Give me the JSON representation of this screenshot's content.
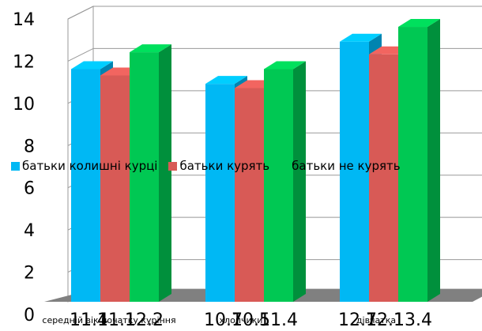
{
  "chart_data": {
    "type": "bar",
    "categories": [
      "середній вік початку куріння",
      "хлопчики",
      "дівчатка"
    ],
    "series": [
      {
        "name": "батьки колишні курці",
        "color": "#00b8f4",
        "values": [
          11.4,
          10.7,
          12.7
        ]
      },
      {
        "name": "батьки курять",
        "color": "#d85a56",
        "values": [
          11.1,
          10.5,
          12.1
        ]
      },
      {
        "name": "батьки не курять",
        "color": "#00c853",
        "values": [
          12.2,
          11.4,
          13.4
        ]
      }
    ],
    "data_labels": [
      [
        "11.4",
        "11.1",
        "12.2"
      ],
      [
        "10.7",
        "10.5",
        "11.4"
      ],
      [
        "12.7",
        "12.1",
        "13.4"
      ]
    ],
    "yticks": [
      0,
      2,
      4,
      6,
      8,
      10,
      12,
      14
    ],
    "ylim": [
      0,
      14
    ],
    "grid": true,
    "legend_position": "middle-left"
  }
}
